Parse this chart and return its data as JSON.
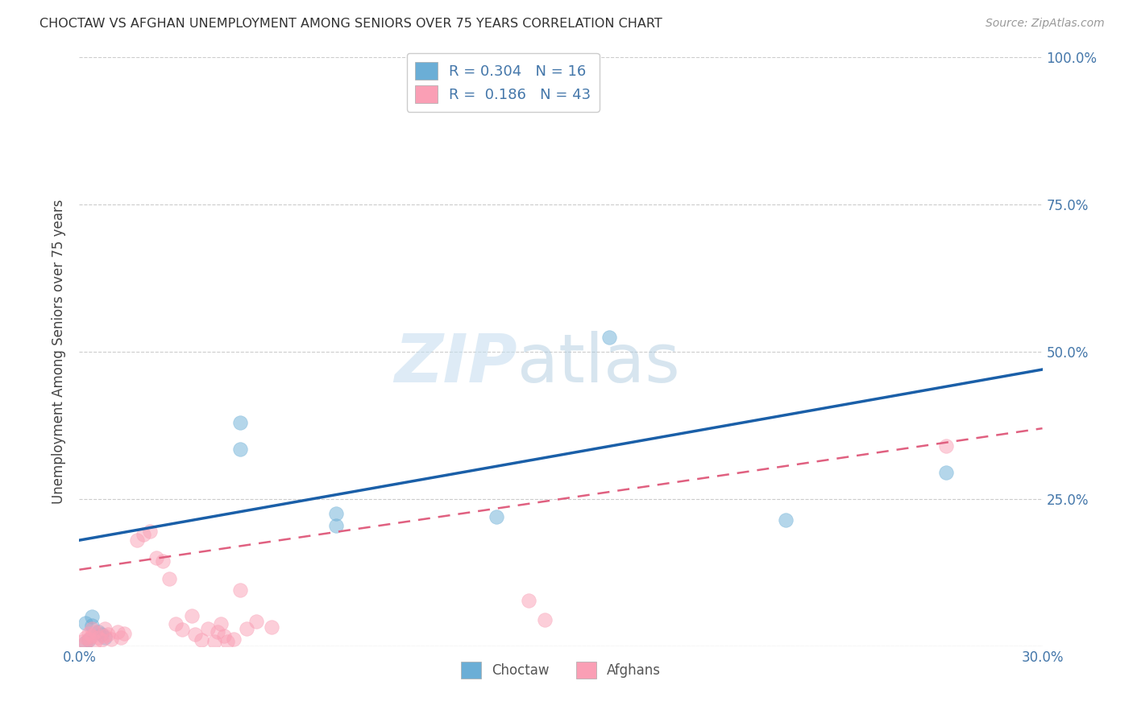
{
  "title": "CHOCTAW VS AFGHAN UNEMPLOYMENT AMONG SENIORS OVER 75 YEARS CORRELATION CHART",
  "source": "Source: ZipAtlas.com",
  "ylabel": "Unemployment Among Seniors over 75 years",
  "xlim": [
    0.0,
    0.3
  ],
  "ylim": [
    0.0,
    1.0
  ],
  "yticks": [
    0.0,
    0.25,
    0.5,
    0.75,
    1.0
  ],
  "ytick_labels_right": [
    "",
    "25.0%",
    "50.0%",
    "75.0%",
    "100.0%"
  ],
  "xticks": [
    0.0,
    0.1,
    0.2,
    0.3
  ],
  "xtick_labels": [
    "0.0%",
    "",
    "",
    "30.0%"
  ],
  "choctaw_color": "#6baed6",
  "afghan_color": "#fa9fb5",
  "choctaw_R": 0.304,
  "choctaw_N": 16,
  "afghan_R": 0.186,
  "afghan_N": 43,
  "choctaw_line_x": [
    0.0,
    0.3
  ],
  "choctaw_line_y": [
    0.18,
    0.47
  ],
  "afghan_line_x": [
    0.0,
    0.3
  ],
  "afghan_line_y": [
    0.13,
    0.37
  ],
  "choctaw_points": [
    [
      0.002,
      0.04
    ],
    [
      0.004,
      0.05
    ],
    [
      0.004,
      0.035
    ],
    [
      0.006,
      0.025
    ],
    [
      0.007,
      0.02
    ],
    [
      0.008,
      0.015
    ],
    [
      0.003,
      0.01
    ],
    [
      0.002,
      0.007
    ],
    [
      0.05,
      0.38
    ],
    [
      0.05,
      0.335
    ],
    [
      0.08,
      0.225
    ],
    [
      0.08,
      0.205
    ],
    [
      0.13,
      0.22
    ],
    [
      0.165,
      0.525
    ],
    [
      0.22,
      0.215
    ],
    [
      0.27,
      0.295
    ]
  ],
  "afghan_points": [
    [
      0.001,
      0.008
    ],
    [
      0.002,
      0.015
    ],
    [
      0.002,
      0.005
    ],
    [
      0.003,
      0.012
    ],
    [
      0.003,
      0.022
    ],
    [
      0.004,
      0.03
    ],
    [
      0.004,
      0.018
    ],
    [
      0.005,
      0.008
    ],
    [
      0.005,
      0.025
    ],
    [
      0.006,
      0.015
    ],
    [
      0.007,
      0.01
    ],
    [
      0.008,
      0.018
    ],
    [
      0.008,
      0.03
    ],
    [
      0.009,
      0.02
    ],
    [
      0.01,
      0.012
    ],
    [
      0.012,
      0.025
    ],
    [
      0.013,
      0.015
    ],
    [
      0.014,
      0.022
    ],
    [
      0.018,
      0.18
    ],
    [
      0.02,
      0.19
    ],
    [
      0.022,
      0.195
    ],
    [
      0.024,
      0.15
    ],
    [
      0.026,
      0.145
    ],
    [
      0.028,
      0.115
    ],
    [
      0.03,
      0.038
    ],
    [
      0.032,
      0.028
    ],
    [
      0.035,
      0.052
    ],
    [
      0.036,
      0.02
    ],
    [
      0.038,
      0.01
    ],
    [
      0.04,
      0.03
    ],
    [
      0.042,
      0.008
    ],
    [
      0.043,
      0.025
    ],
    [
      0.044,
      0.038
    ],
    [
      0.045,
      0.018
    ],
    [
      0.046,
      0.008
    ],
    [
      0.048,
      0.012
    ],
    [
      0.05,
      0.095
    ],
    [
      0.052,
      0.03
    ],
    [
      0.055,
      0.042
    ],
    [
      0.06,
      0.032
    ],
    [
      0.14,
      0.078
    ],
    [
      0.145,
      0.045
    ],
    [
      0.27,
      0.34
    ]
  ],
  "watermark_zip": "ZIP",
  "watermark_atlas": "atlas",
  "background_color": "#ffffff",
  "grid_color": "#cccccc",
  "title_color": "#333333",
  "axis_color": "#4477aa",
  "line_blue_color": "#1a5fa8",
  "line_pink_color": "#e06080"
}
